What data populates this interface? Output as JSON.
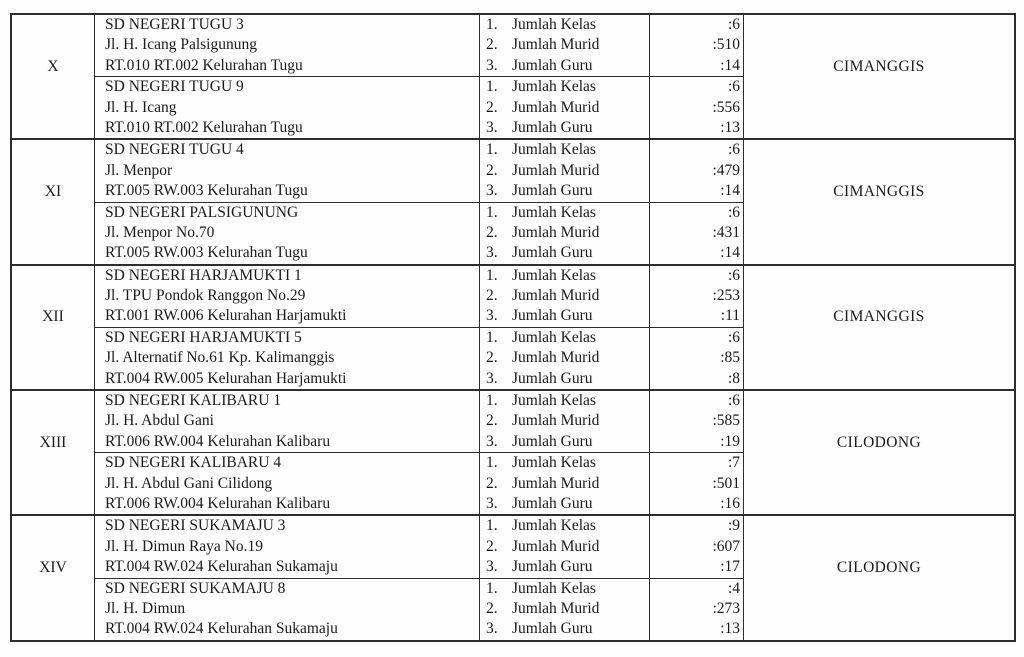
{
  "document": {
    "colors": {
      "text": "#1a1a1a",
      "border": "#2d2d2d",
      "background": "#fefefe"
    },
    "sections": [
      {
        "numeral": "X",
        "district": "CIMANGGIS",
        "schools": [
          {
            "name": "SD NEGERI TUGU 3",
            "address_line1": "Jl. H. Icang Palsigunung",
            "address_line2": "RT.010 RT.002 Kelurahan Tugu",
            "stats": [
              {
                "no": "1.",
                "label": "Jumlah Kelas",
                "value": ":6"
              },
              {
                "no": "2.",
                "label": "Jumlah Murid",
                "value": ":510"
              },
              {
                "no": "3.",
                "label": "Jumlah Guru",
                "value": ":14"
              }
            ]
          },
          {
            "name": "SD NEGERI TUGU 9",
            "address_line1": "Jl. H. Icang",
            "address_line2": "RT.010 RT.002 Kelurahan Tugu",
            "stats": [
              {
                "no": "1.",
                "label": "Jumlah Kelas",
                "value": ":6"
              },
              {
                "no": "2.",
                "label": "Jumlah Murid",
                "value": ":556"
              },
              {
                "no": "3.",
                "label": "Jumlah Guru",
                "value": ":13"
              }
            ]
          }
        ]
      },
      {
        "numeral": "XI",
        "district": "CIMANGGIS",
        "schools": [
          {
            "name": "SD NEGERI TUGU 4",
            "address_line1": "Jl. Menpor",
            "address_line2": "RT.005 RW.003 Kelurahan Tugu",
            "stats": [
              {
                "no": "1.",
                "label": "Jumlah Kelas",
                "value": ":6"
              },
              {
                "no": "2.",
                "label": "Jumlah Murid",
                "value": ":479"
              },
              {
                "no": "3.",
                "label": "Jumlah Guru",
                "value": ":14"
              }
            ]
          },
          {
            "name": "SD NEGERI PALSIGUNUNG",
            "address_line1": "Jl. Menpor No.70",
            "address_line2": "RT.005 RW.003 Kelurahan Tugu",
            "stats": [
              {
                "no": "1.",
                "label": "Jumlah Kelas",
                "value": ":6"
              },
              {
                "no": "2.",
                "label": "Jumlah Murid",
                "value": ":431"
              },
              {
                "no": "3.",
                "label": "Jumlah Guru",
                "value": ":14"
              }
            ]
          }
        ]
      },
      {
        "numeral": "XII",
        "district": "CIMANGGIS",
        "schools": [
          {
            "name": "SD NEGERI HARJAMUKTI 1",
            "address_line1": "Jl. TPU Pondok Ranggon No.29",
            "address_line2": "RT.001 RW.006 Kelurahan Harjamukti",
            "stats": [
              {
                "no": "1.",
                "label": "Jumlah Kelas",
                "value": ":6"
              },
              {
                "no": "2.",
                "label": "Jumlah Murid",
                "value": ":253"
              },
              {
                "no": "3.",
                "label": "Jumlah Guru",
                "value": ":11"
              }
            ]
          },
          {
            "name": "SD NEGERI HARJAMUKTI 5",
            "address_line1": "Jl. Alternatif No.61 Kp. Kalimanggis",
            "address_line2": "RT.004 RW.005 Kelurahan Harjamukti",
            "stats": [
              {
                "no": "1.",
                "label": "Jumlah Kelas",
                "value": ":6"
              },
              {
                "no": "2.",
                "label": "Jumlah Murid",
                "value": ":85"
              },
              {
                "no": "3.",
                "label": "Jumlah Guru",
                "value": ":8"
              }
            ]
          }
        ]
      },
      {
        "numeral": "XIII",
        "district": "CILODONG",
        "schools": [
          {
            "name": "SD NEGERI KALIBARU 1",
            "address_line1": "Jl. H. Abdul Gani",
            "address_line2": "RT.006 RW.004 Kelurahan Kalibaru",
            "stats": [
              {
                "no": "1.",
                "label": "Jumlah Kelas",
                "value": ":6"
              },
              {
                "no": "2.",
                "label": "Jumlah Murid",
                "value": ":585"
              },
              {
                "no": "3.",
                "label": "Jumlah Guru",
                "value": ":19"
              }
            ]
          },
          {
            "name": "SD NEGERI KALIBARU 4",
            "address_line1": "Jl. H. Abdul Gani Cilidong",
            "address_line2": "RT.006 RW.004 Kelurahan Kalibaru",
            "stats": [
              {
                "no": "1.",
                "label": "Jumlah Kelas",
                "value": ":7"
              },
              {
                "no": "2.",
                "label": "Jumlah Murid",
                "value": ":501"
              },
              {
                "no": "3.",
                "label": "Jumlah Guru",
                "value": ":16"
              }
            ]
          }
        ]
      },
      {
        "numeral": "XIV",
        "district": "CILODONG",
        "schools": [
          {
            "name": "SD NEGERI SUKAMAJU 3",
            "address_line1": "Jl. H. Dimun Raya No.19",
            "address_line2": "RT.004 RW.024 Kelurahan Sukamaju",
            "stats": [
              {
                "no": "1.",
                "label": "Jumlah Kelas",
                "value": ":9"
              },
              {
                "no": "2.",
                "label": "Jumlah Murid",
                "value": ":607"
              },
              {
                "no": "3.",
                "label": "Jumlah Guru",
                "value": ":17"
              }
            ]
          },
          {
            "name": "SD NEGERI SUKAMAJU 8",
            "address_line1": "Jl. H. Dimun",
            "address_line2": "RT.004 RW.024 Kelurahan Sukamaju",
            "stats": [
              {
                "no": "1.",
                "label": "Jumlah Kelas",
                "value": ":4"
              },
              {
                "no": "2.",
                "label": "Jumlah Murid",
                "value": ":273"
              },
              {
                "no": "3.",
                "label": "Jumlah Guru",
                "value": ":13"
              }
            ]
          }
        ]
      }
    ]
  }
}
